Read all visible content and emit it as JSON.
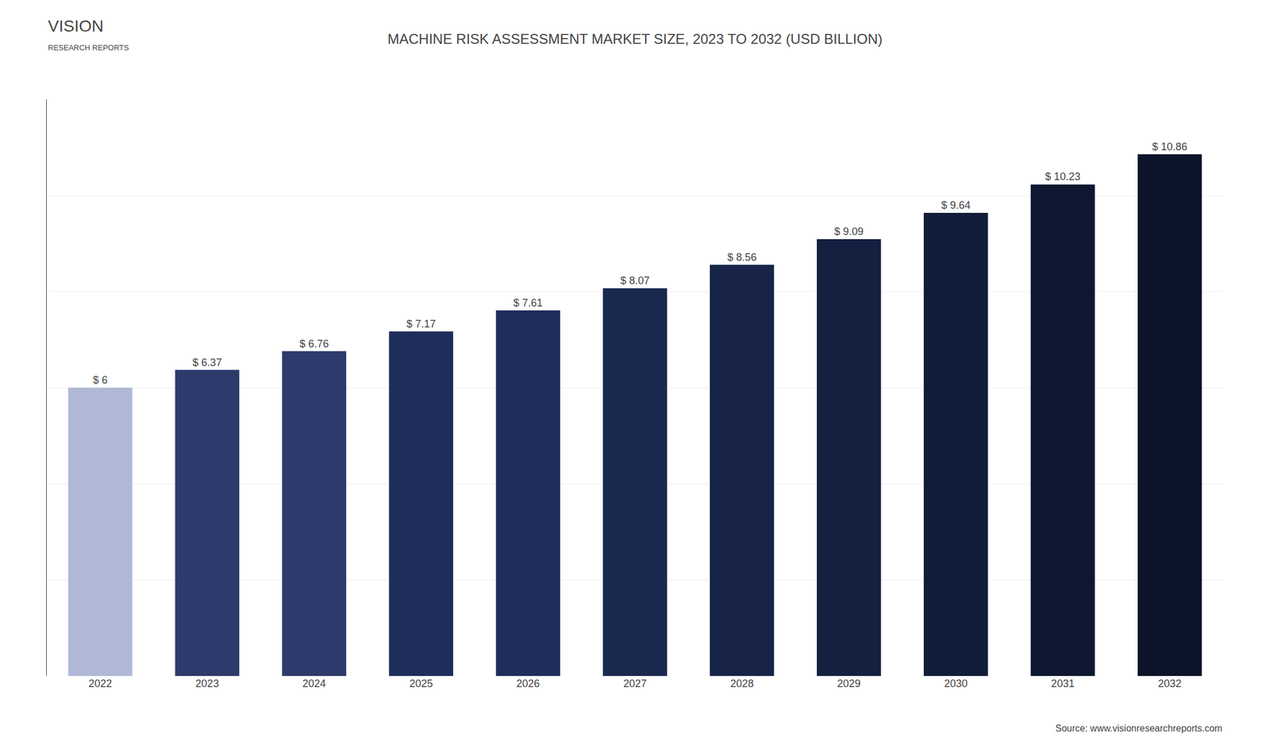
{
  "chart_data": {
    "type": "bar",
    "title": "MACHINE RISK ASSESSMENT MARKET SIZE, 2023 TO 2032 (USD BILLION)",
    "categories": [
      "2022",
      "2023",
      "2024",
      "2025",
      "2026",
      "2027",
      "2028",
      "2029",
      "2030",
      "2031",
      "2032"
    ],
    "values": [
      6.0,
      6.37,
      6.76,
      7.17,
      7.61,
      8.07,
      8.56,
      9.09,
      9.64,
      10.23,
      10.86
    ],
    "value_labels": [
      "$ 6",
      "$ 6.37",
      "$ 6.76",
      "$ 7.17",
      "$ 7.61",
      "$ 8.07",
      "$ 8.56",
      "$ 9.09",
      "$ 9.64",
      "$ 10.23",
      "$ 10.86"
    ],
    "data_labels": true,
    "colors": [
      "#b0b8d8",
      "#2d3a6b",
      "#2d3a6b",
      "#1e2d5a",
      "#1e2d5a",
      "#1a2850",
      "#172447",
      "#14203f",
      "#111c38",
      "#0e1830",
      "#0b1428"
    ],
    "ylim": [
      0,
      12
    ],
    "yticks": [
      0,
      2,
      4,
      6,
      8,
      10,
      12
    ],
    "grid": true,
    "tick_labels": "x",
    "annotations": [
      "VISION",
      "RESEARCH REPORTS",
      "Source: www.visionresearchreports.com"
    ]
  }
}
